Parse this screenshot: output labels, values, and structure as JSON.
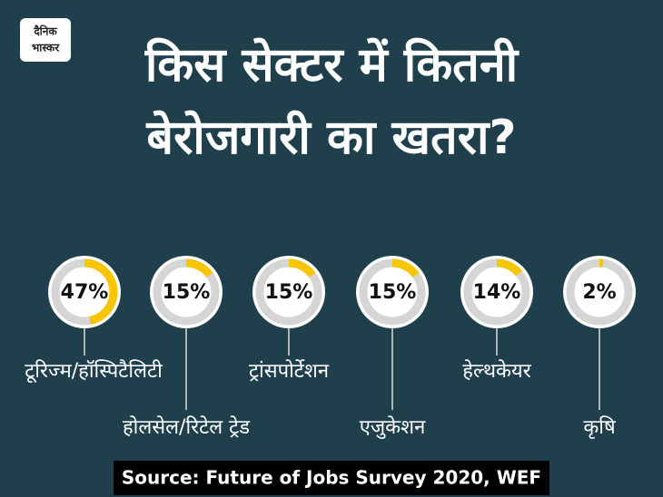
{
  "logo": [
    "दैनिक",
    "भास्कर"
  ],
  "chart_data": {
    "type": "donut",
    "title": [
      "किस सेक्टर में कितनी",
      "बेरोजगारी का खतरा?"
    ],
    "categories": [
      "टूरिज्म/हॉस्पिटैलिटी",
      "होलसेल/रिटेल ट्रेड",
      "ट्रांसपोर्टेशन",
      "एजुकेशन",
      "हेल्थकेयर",
      "कृषि"
    ],
    "values": [
      47,
      15,
      15,
      15,
      14,
      2
    ],
    "value_labels": [
      "47%",
      "15%",
      "15%",
      "15%",
      "14%",
      "2%"
    ],
    "color": "#f7c600",
    "source": "Source: Future of Jobs Survey 2020, WEF"
  }
}
